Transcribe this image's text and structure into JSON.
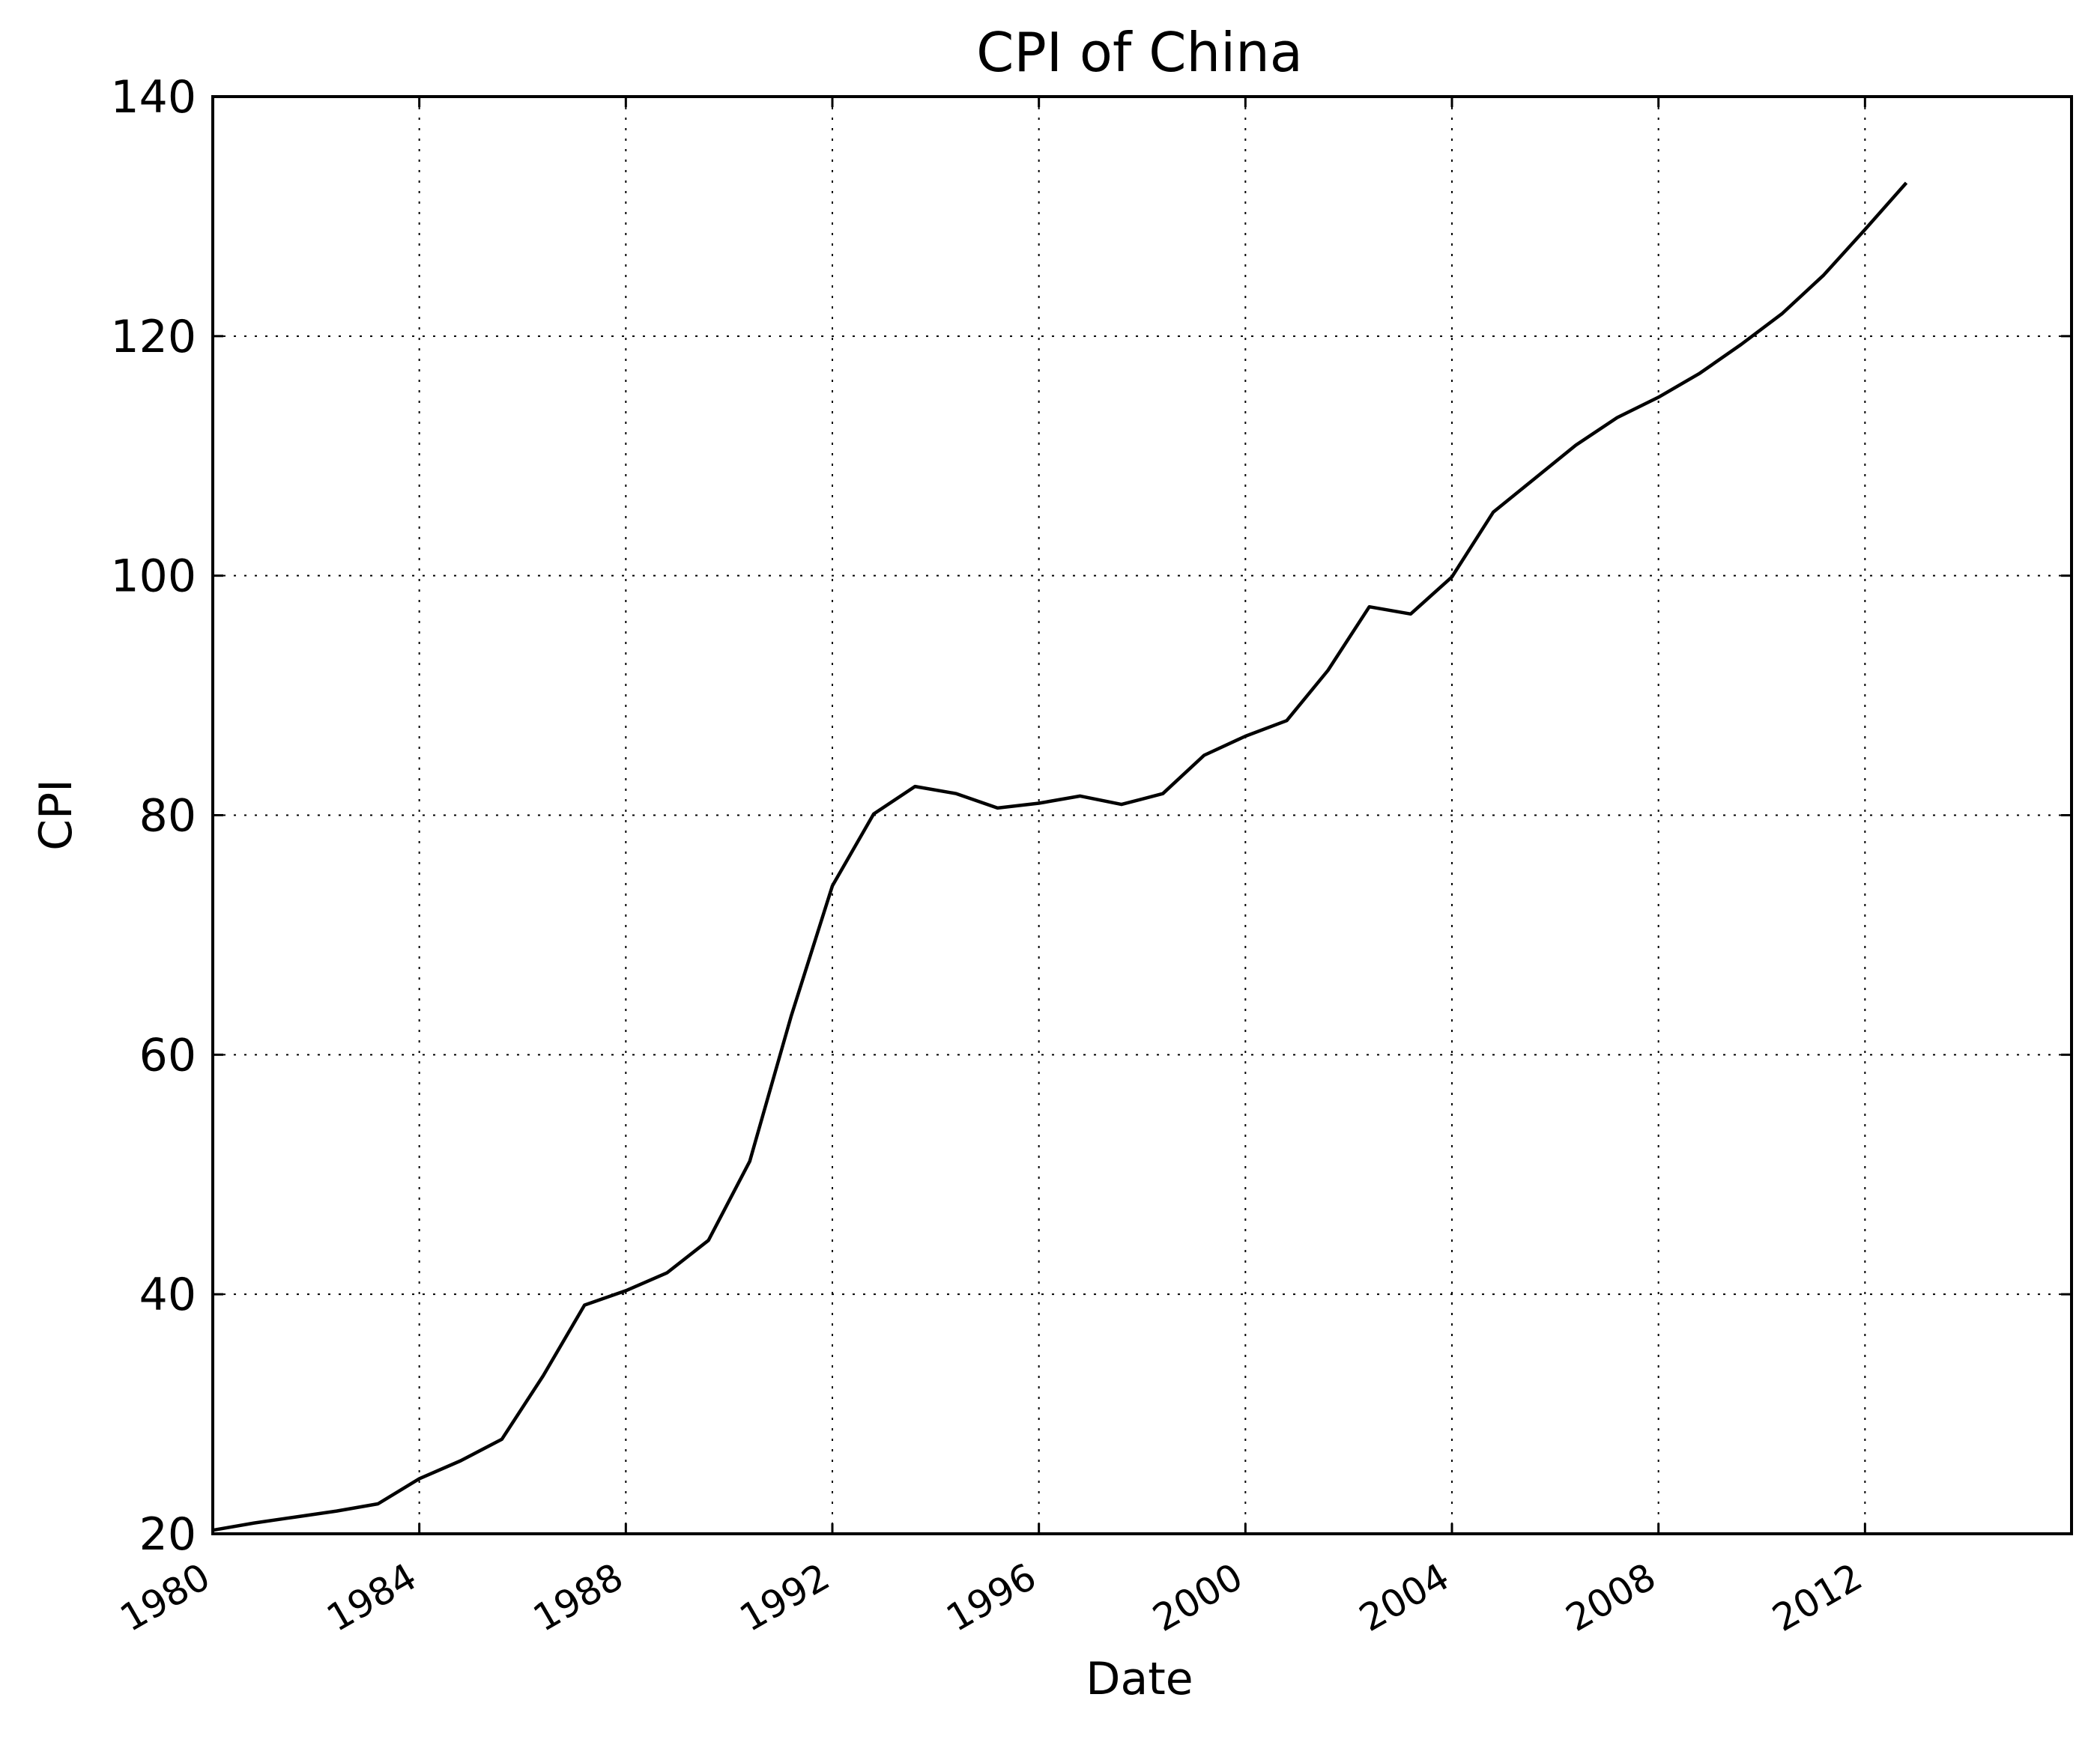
{
  "chart_data": {
    "type": "line",
    "title": "CPI of China",
    "xlabel": "Date",
    "ylabel": "CPI",
    "xlim": [
      1980,
      2016
    ],
    "ylim": [
      20,
      140
    ],
    "xticks": [
      "1980",
      "1984",
      "1988",
      "1992",
      "1996",
      "2000",
      "2004",
      "2008",
      "2012"
    ],
    "yticks": [
      "20",
      "40",
      "60",
      "80",
      "100",
      "120",
      "140"
    ],
    "grid": true,
    "legend": "none",
    "series": [
      {
        "color": "#000000",
        "x": [
          1980.0,
          1980.8,
          1981.6,
          1982.4,
          1983.2,
          1984.0,
          1984.8,
          1985.6,
          1986.4,
          1987.2,
          1988.0,
          1988.8,
          1989.6,
          1990.4,
          1991.2,
          1992.0,
          1992.8,
          1993.6,
          1994.4,
          1995.2,
          1996.0,
          1996.8,
          1997.6,
          1998.4,
          1999.2,
          2000.0,
          2000.8,
          2001.6,
          2002.4,
          2003.2,
          2004.0,
          2004.8,
          2005.6,
          2006.4,
          2007.2,
          2008.0,
          2008.8,
          2009.6,
          2010.4,
          2011.2,
          2012.0,
          2012.8
        ],
        "y": [
          20.3,
          20.9,
          21.4,
          21.9,
          22.5,
          24.6,
          26.1,
          27.9,
          33.2,
          39.1,
          40.3,
          41.8,
          44.5,
          51.1,
          63.2,
          74.1,
          80.1,
          82.4,
          81.8,
          80.6,
          81.0,
          81.6,
          80.9,
          81.8,
          85.0,
          86.6,
          87.9,
          92.1,
          97.4,
          96.8,
          99.9,
          105.3,
          108.1,
          110.9,
          113.2,
          114.9,
          116.9,
          119.3,
          121.9,
          125.1,
          128.9,
          132.8
        ]
      }
    ]
  }
}
